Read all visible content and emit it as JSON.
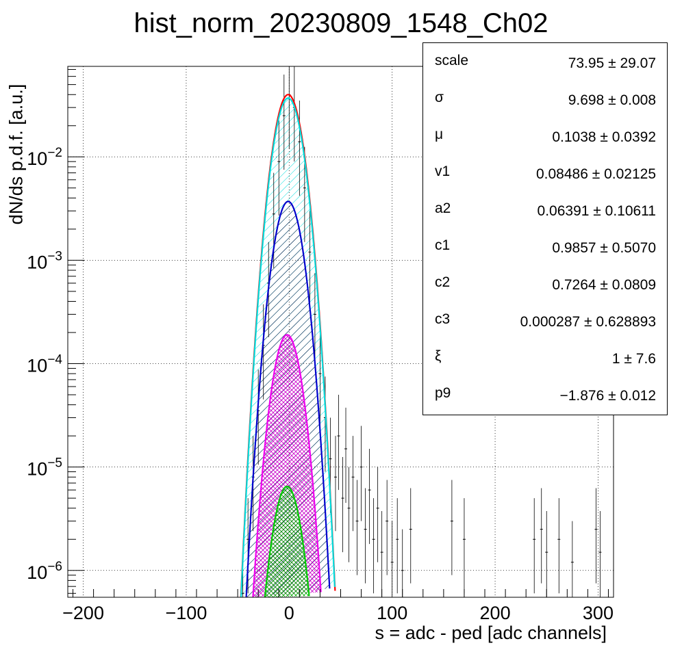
{
  "title": "hist_norm_20230809_1548_Ch02",
  "axes": {
    "xlabel": "s = adc - ped [adc channels]",
    "ylabel": "dN/ds p.d.f. [a.u.]"
  },
  "stats": [
    {
      "name": "scale",
      "value": "73.95 ± 29.07"
    },
    {
      "name": "σ",
      "value": "9.698 ± 0.008"
    },
    {
      "name": "μ",
      "value": "0.1038 ± 0.0392"
    },
    {
      "name": "v1",
      "value": "0.08486 ± 0.02125"
    },
    {
      "name": "a2",
      "value": "0.06391 ± 0.10611"
    },
    {
      "name": "c1",
      "value": "0.9857 ± 0.5070"
    },
    {
      "name": "c2",
      "value": "0.7264 ± 0.0809"
    },
    {
      "name": "c3",
      "value": "0.000287 ± 0.628893"
    },
    {
      "name": "ξ",
      "value": "1 ± 7.6"
    },
    {
      "name": "p9",
      "value": "−1.876 ± 0.012"
    }
  ],
  "chart_data": {
    "type": "line",
    "xlabel": "s = adc - ped [adc channels]",
    "ylabel": "dN/ds p.d.f. [a.u.]",
    "xlim": [
      -215,
      315
    ],
    "ylim": [
      5.5e-07,
      0.075
    ],
    "yscale": "log",
    "grid": true,
    "xticks": [
      -200,
      -100,
      0,
      100,
      200,
      300
    ],
    "xtick_labels": [
      "−200",
      "−100",
      "0",
      "100",
      "200",
      "300"
    ],
    "yticks": [
      1e-06,
      1e-05,
      0.0001,
      0.001,
      0.01
    ],
    "ytick_labels": [
      {
        "base": "10",
        "exp": "−6"
      },
      {
        "base": "10",
        "exp": "−5"
      },
      {
        "base": "10",
        "exp": "−4"
      },
      {
        "base": "10",
        "exp": "−3"
      },
      {
        "base": "10",
        "exp": "−2"
      }
    ],
    "series": [
      {
        "color": "#ff0000",
        "peak": 0.04,
        "mu": -1,
        "sigma": 9.7,
        "fill": "none"
      },
      {
        "color": "#00dddd",
        "peak": 0.037,
        "mu": -1,
        "sigma": 9.7,
        "fill": "hatch"
      },
      {
        "color": "#0000cc",
        "peak": 0.0037,
        "mu": -1,
        "sigma": 9.7,
        "fill": "hatch"
      },
      {
        "color": "#ee00ee",
        "peak": 0.00019,
        "mu": -2,
        "sigma": 9.7,
        "fill": "crosshatch"
      },
      {
        "color": "#00cc00",
        "peak": 6.5e-06,
        "mu": -2,
        "sigma": 9.7,
        "fill": "crosshatch"
      }
    ],
    "data_points": [
      {
        "x": -45,
        "y": 6e-07
      },
      {
        "x": -40,
        "y": 2e-06
      },
      {
        "x": -35,
        "y": 8e-06
      },
      {
        "x": -30,
        "y": 3.5e-05
      },
      {
        "x": -25,
        "y": 0.00015
      },
      {
        "x": -20,
        "y": 0.0006
      },
      {
        "x": -15,
        "y": 0.0028
      },
      {
        "x": -10,
        "y": 0.009
      },
      {
        "x": -5,
        "y": 0.025
      },
      {
        "x": 0,
        "y": 0.04
      },
      {
        "x": 5,
        "y": 0.03
      },
      {
        "x": 10,
        "y": 0.014
      },
      {
        "x": 15,
        "y": 0.005
      },
      {
        "x": 20,
        "y": 0.0012
      },
      {
        "x": 25,
        "y": 0.0003
      },
      {
        "x": 30,
        "y": 8e-05
      },
      {
        "x": 35,
        "y": 3e-05
      },
      {
        "x": 40,
        "y": 1.2e-05
      },
      {
        "x": 45,
        "y": 8e-06
      },
      {
        "x": 48,
        "y": 2e-05
      },
      {
        "x": 52,
        "y": 5e-06
      },
      {
        "x": 55,
        "y": 1.5e-05
      },
      {
        "x": 58,
        "y": 4e-06
      },
      {
        "x": 62,
        "y": 8e-06
      },
      {
        "x": 66,
        "y": 3e-06
      },
      {
        "x": 70,
        "y": 1e-05
      },
      {
        "x": 74,
        "y": 2.5e-06
      },
      {
        "x": 78,
        "y": 6e-06
      },
      {
        "x": 82,
        "y": 2e-06
      },
      {
        "x": 86,
        "y": 4e-06
      },
      {
        "x": 90,
        "y": 1.5e-06
      },
      {
        "x": 95,
        "y": 3e-06
      },
      {
        "x": 100,
        "y": 1.2e-06
      },
      {
        "x": 105,
        "y": 2e-06
      },
      {
        "x": 110,
        "y": 1e-06
      },
      {
        "x": 118,
        "y": 2.5e-06
      },
      {
        "x": 158,
        "y": 3e-06
      },
      {
        "x": 170,
        "y": 2e-06
      },
      {
        "x": 238,
        "y": 2e-06
      },
      {
        "x": 245,
        "y": 2.5e-06
      },
      {
        "x": 250,
        "y": 1.5e-06
      },
      {
        "x": 262,
        "y": 2e-06
      },
      {
        "x": 275,
        "y": 1.2e-06
      },
      {
        "x": 298,
        "y": 2.5e-06
      },
      {
        "x": 302,
        "y": 1.5e-06
      }
    ]
  }
}
